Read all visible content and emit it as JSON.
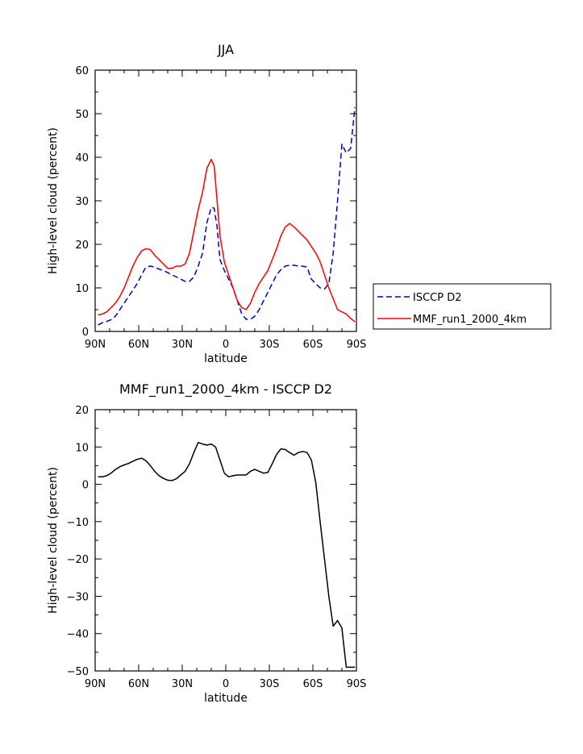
{
  "chart_data": [
    {
      "type": "line",
      "title": "JJA",
      "xlabel": "latitude",
      "ylabel": "High-level cloud (percent)",
      "xlim": [
        90,
        -90
      ],
      "ylim": [
        0,
        60
      ],
      "xticks": [
        90,
        60,
        30,
        0,
        -30,
        -60,
        -90
      ],
      "xtick_labels": [
        "90N",
        "60N",
        "30N",
        "0",
        "30S",
        "60S",
        "90S"
      ],
      "yticks": [
        0,
        10,
        20,
        30,
        40,
        50,
        60
      ],
      "ytick_labels": [
        "0",
        "10",
        "20",
        "30",
        "40",
        "50",
        "60"
      ],
      "legend": "right",
      "series": [
        {
          "name": "ISCCP D2",
          "color": "#0000cc",
          "style": "dashed",
          "x": [
            88,
            85,
            82,
            79,
            76,
            73,
            70,
            67,
            64,
            61,
            58,
            55,
            52,
            49,
            46,
            43,
            40,
            37,
            34,
            31,
            28,
            25,
            22,
            19,
            16,
            13,
            10,
            8,
            6,
            4,
            1,
            -2,
            -5,
            -8,
            -11,
            -14,
            -17,
            -20,
            -23,
            -26,
            -29,
            -32,
            -35,
            -38,
            -41,
            -44,
            -47,
            -50,
            -53,
            -56,
            -59,
            -62,
            -65,
            -68,
            -71,
            -74,
            -77,
            -80,
            -83,
            -86,
            -89
          ],
          "y": [
            1.5,
            2.0,
            2.3,
            2.7,
            3.5,
            5.0,
            6.5,
            8.0,
            9.5,
            11.0,
            13.0,
            14.8,
            15.0,
            14.8,
            14.3,
            14.0,
            13.5,
            13.0,
            12.5,
            12.0,
            11.5,
            11.5,
            12.5,
            15.0,
            18.0,
            25.0,
            28.5,
            28.3,
            24.0,
            16.5,
            14.0,
            12.0,
            10.0,
            7.0,
            4.0,
            2.8,
            2.8,
            3.5,
            5.0,
            7.0,
            9.0,
            11.0,
            13.0,
            14.2,
            15.0,
            15.2,
            15.2,
            15.0,
            15.0,
            14.8,
            12.0,
            11.0,
            10.0,
            9.7,
            11.0,
            18.0,
            30.0,
            43.0,
            41.0,
            42.0,
            51.5
          ]
        },
        {
          "name": "MMF_run1_2000_4km",
          "color": "#ff0000",
          "style": "solid",
          "x": [
            88,
            85,
            82,
            79,
            76,
            73,
            70,
            67,
            64,
            61,
            58,
            55,
            52,
            49,
            46,
            43,
            40,
            37,
            34,
            31,
            28,
            25,
            22,
            19,
            16,
            13,
            10,
            8,
            6,
            4,
            1,
            -2,
            -5,
            -8,
            -11,
            -14,
            -17,
            -20,
            -23,
            -26,
            -29,
            -32,
            -35,
            -38,
            -41,
            -44,
            -47,
            -50,
            -53,
            -56,
            -59,
            -62,
            -65,
            -68,
            -71,
            -74,
            -77,
            -80,
            -83,
            -86,
            -89
          ],
          "y": [
            3.8,
            4.0,
            4.5,
            5.5,
            6.5,
            8.0,
            10.0,
            12.5,
            15.0,
            17.0,
            18.5,
            19.0,
            18.8,
            17.5,
            16.5,
            15.5,
            14.5,
            14.5,
            15.0,
            15.0,
            15.5,
            18.0,
            23.0,
            28.0,
            32.0,
            37.5,
            39.5,
            38.0,
            30.0,
            22.0,
            16.0,
            13.0,
            10.0,
            7.0,
            5.5,
            5.0,
            6.5,
            9.0,
            11.0,
            12.5,
            14.0,
            16.5,
            19.0,
            22.0,
            24.0,
            24.8,
            24.0,
            23.0,
            22.0,
            21.0,
            19.5,
            18.0,
            16.0,
            13.0,
            10.0,
            7.5,
            5.0,
            4.5,
            4.0,
            3.0,
            2.2
          ]
        }
      ]
    },
    {
      "type": "line",
      "title": "MMF_run1_2000_4km - ISCCP D2",
      "xlabel": "latitude",
      "ylabel": "High-level cloud (percent)",
      "xlim": [
        90,
        -90
      ],
      "ylim": [
        -50,
        20
      ],
      "xticks": [
        90,
        60,
        30,
        0,
        -30,
        -60,
        -90
      ],
      "xtick_labels": [
        "90N",
        "60N",
        "30N",
        "0",
        "30S",
        "60S",
        "90S"
      ],
      "yticks": [
        -50,
        -40,
        -30,
        -20,
        -10,
        0,
        10,
        20
      ],
      "ytick_labels": [
        "-50",
        "-40",
        "-30",
        "-20",
        "-10",
        "0",
        "10",
        "20"
      ],
      "series": [
        {
          "color": "#000000",
          "style": "solid",
          "x": [
            88,
            85,
            82,
            79,
            76,
            73,
            70,
            67,
            64,
            61,
            58,
            55,
            52,
            49,
            46,
            43,
            40,
            37,
            34,
            31,
            28,
            25,
            22,
            19,
            16,
            13,
            10,
            7,
            4,
            1,
            -2,
            -5,
            -8,
            -11,
            -14,
            -17,
            -20,
            -23,
            -26,
            -29,
            -32,
            -35,
            -38,
            -41,
            -44,
            -47,
            -50,
            -53,
            -56,
            -59,
            -62,
            -65,
            -68,
            -71,
            -74,
            -77,
            -80,
            -83,
            -86,
            -89
          ],
          "y": [
            2.0,
            2.0,
            2.3,
            3.0,
            4.0,
            4.7,
            5.2,
            5.6,
            6.2,
            6.7,
            7.0,
            6.3,
            5.0,
            3.5,
            2.3,
            1.6,
            1.1,
            1.0,
            1.5,
            2.5,
            3.5,
            5.5,
            8.5,
            11.2,
            10.8,
            10.5,
            10.8,
            10.0,
            6.5,
            3.0,
            2.0,
            2.3,
            2.5,
            2.5,
            2.5,
            3.5,
            4.0,
            3.5,
            3.0,
            3.2,
            5.5,
            8.0,
            9.5,
            9.3,
            8.5,
            7.8,
            8.5,
            8.8,
            8.5,
            6.5,
            0.5,
            -10.0,
            -20.0,
            -30.0,
            -38.0,
            -36.5,
            -38.5,
            -49.0,
            -49.0,
            -49.0
          ]
        }
      ]
    }
  ]
}
